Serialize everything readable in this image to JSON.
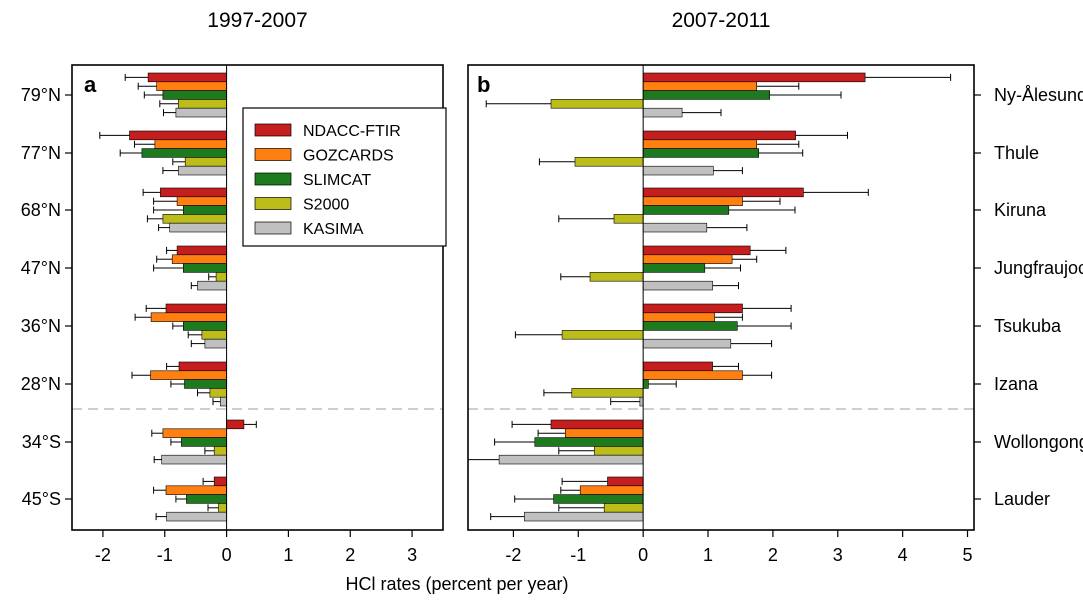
{
  "figure": {
    "xlabel": "HCl rates (percent per year)"
  },
  "chart_data": [
    {
      "type": "bar",
      "orientation": "horizontal",
      "panel_letter": "a",
      "title": "1997-2007",
      "xlim": [
        -2.5,
        3.5
      ],
      "xticks": [
        -2,
        -1,
        0,
        1,
        2,
        3
      ],
      "categories": [
        "79°N",
        "77°N",
        "68°N",
        "47°N",
        "36°N",
        "28°N",
        "34°S",
        "45°S"
      ],
      "legend": {
        "placement": "top-right",
        "entries": [
          "NDACC-FTIR",
          "GOZCARDS",
          "SLIMCAT",
          "S2000",
          "KASIMA"
        ]
      },
      "series": [
        {
          "name": "NDACC-FTIR",
          "color": "#c41e1e",
          "values": [
            -1.27,
            -1.57,
            -1.07,
            -0.8,
            -0.98,
            -0.77,
            0.28,
            -0.2
          ],
          "errors": [
            0.37,
            0.48,
            0.28,
            0.17,
            0.32,
            0.2,
            0.2,
            0.18
          ]
        },
        {
          "name": "GOZCARDS",
          "color": "#ff7f10",
          "values": [
            -1.13,
            -1.16,
            -0.8,
            -0.88,
            -1.22,
            -1.23,
            -1.03,
            -0.98
          ],
          "errors": [
            0.3,
            0.33,
            0.38,
            0.25,
            0.26,
            0.3,
            0.18,
            0.2
          ]
        },
        {
          "name": "SLIMCAT",
          "color": "#1e7a1e",
          "values": [
            -1.03,
            -1.37,
            -0.7,
            -0.7,
            -0.7,
            -0.68,
            -0.73,
            -0.65
          ],
          "errors": [
            0.3,
            0.35,
            0.48,
            0.48,
            0.17,
            0.22,
            0.17,
            0.17
          ]
        },
        {
          "name": "S2000",
          "color": "#bcbc1a",
          "values": [
            -0.78,
            -0.67,
            -1.03,
            -0.17,
            -0.4,
            -0.27,
            -0.2,
            -0.13
          ],
          "errors": [
            0.3,
            0.2,
            0.25,
            0.12,
            0.22,
            0.2,
            0.15,
            0.17
          ]
        },
        {
          "name": "KASIMA",
          "color": "#c0c0c0",
          "values": [
            -0.82,
            -0.78,
            -0.92,
            -0.47,
            -0.35,
            -0.1,
            -1.05,
            -0.97
          ],
          "errors": [
            0.2,
            0.25,
            0.18,
            0.1,
            0.22,
            0.12,
            0.12,
            0.17
          ]
        }
      ]
    },
    {
      "type": "bar",
      "orientation": "horizontal",
      "panel_letter": "b",
      "title": "2007-2011",
      "xlim": [
        -2.7,
        5.1
      ],
      "xticks": [
        -2,
        -1,
        0,
        1,
        2,
        3,
        4,
        5
      ],
      "categories": [
        "Ny-Ålesund",
        "Thule",
        "Kiruna",
        "Jungfraujoch",
        "Tsukuba",
        "Izana",
        "Wollongong",
        "Lauder"
      ],
      "series": [
        {
          "name": "NDACC-FTIR",
          "color": "#c41e1e",
          "values": [
            3.42,
            2.35,
            2.47,
            1.65,
            1.53,
            1.07,
            -1.42,
            -0.55
          ],
          "errors": [
            1.32,
            0.8,
            1.0,
            0.55,
            0.75,
            0.4,
            0.6,
            0.7
          ]
        },
        {
          "name": "GOZCARDS",
          "color": "#ff7f10",
          "values": [
            1.75,
            1.75,
            1.53,
            1.37,
            1.1,
            1.53,
            -1.2,
            -0.97
          ],
          "errors": [
            0.65,
            0.65,
            0.58,
            0.38,
            0.43,
            0.45,
            0.42,
            0.3
          ]
        },
        {
          "name": "SLIMCAT",
          "color": "#1e7a1e",
          "values": [
            1.95,
            1.78,
            1.32,
            0.95,
            1.45,
            0.08,
            -1.67,
            -1.38
          ],
          "errors": [
            1.1,
            0.68,
            1.02,
            0.55,
            0.83,
            0.43,
            0.62,
            0.6
          ]
        },
        {
          "name": "S2000",
          "color": "#bcbc1a",
          "values": [
            -1.42,
            -1.05,
            -0.45,
            -0.82,
            -1.25,
            -1.1,
            -0.75,
            -0.6
          ],
          "errors": [
            1.0,
            0.55,
            0.85,
            0.45,
            0.72,
            0.43,
            0.55,
            0.7
          ]
        },
        {
          "name": "KASIMA",
          "color": "#c0c0c0",
          "values": [
            0.6,
            1.08,
            0.98,
            1.07,
            1.35,
            -0.05,
            -2.22,
            -1.83
          ],
          "errors": [
            0.6,
            0.45,
            0.62,
            0.4,
            0.63,
            0.45,
            0.48,
            0.52
          ]
        }
      ]
    }
  ]
}
